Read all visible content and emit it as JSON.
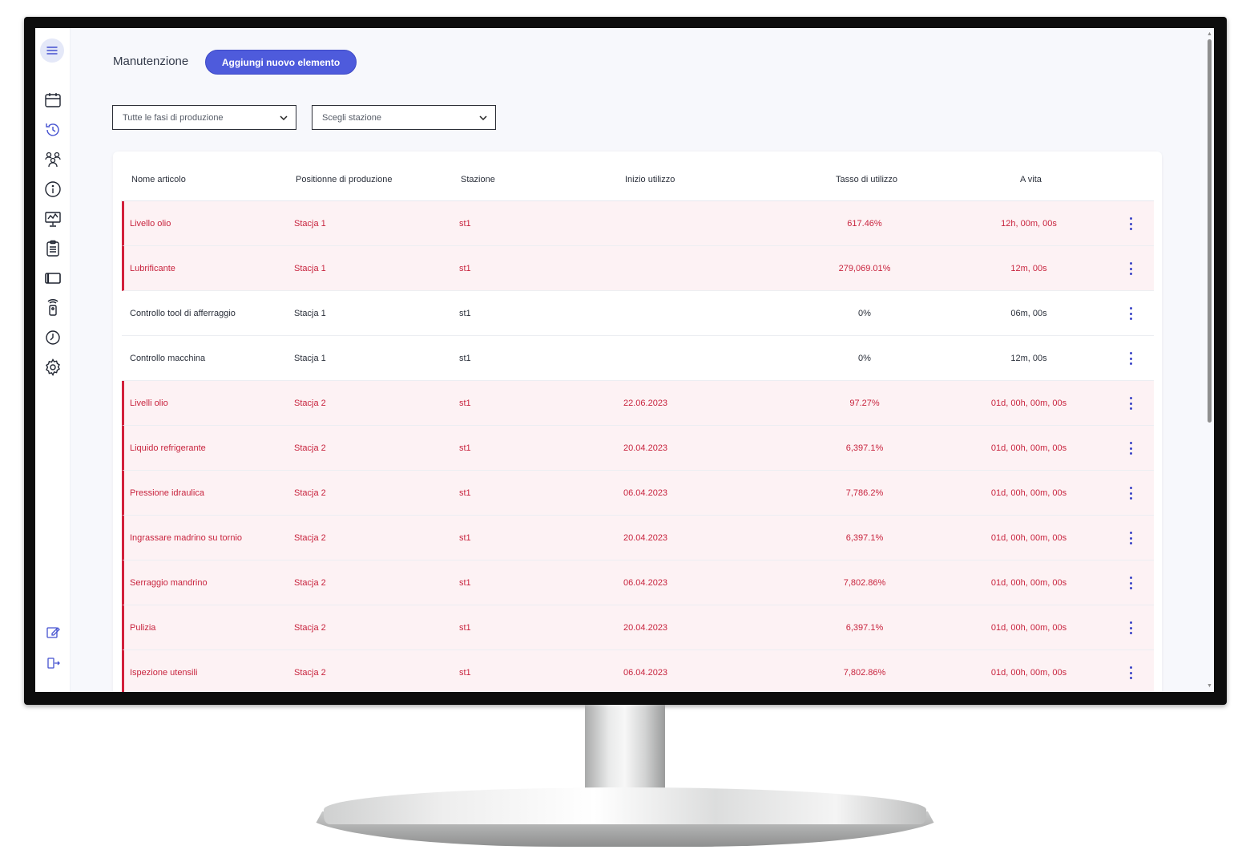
{
  "page": {
    "title": "Manutenzione",
    "add_button_label": "Aggiungi nuovo elemento"
  },
  "filters": {
    "phase": "Tutte le fasi di produzione",
    "station": "Scegli stazione"
  },
  "table": {
    "headers": {
      "name": "Nome articolo",
      "position": "Positionne di produzione",
      "station": "Stazione",
      "start": "Inizio utilizzo",
      "rate": "Tasso di utilizzo",
      "life": "A vita"
    },
    "rows": [
      {
        "name": "Livello olio",
        "position": "Stacja 1",
        "station": "st1",
        "start": "",
        "rate": "617.46%",
        "life": "12h, 00m, 00s",
        "alert": true
      },
      {
        "name": "Lubrificante",
        "position": "Stacja 1",
        "station": "st1",
        "start": "",
        "rate": "279,069.01%",
        "life": "12m, 00s",
        "alert": true
      },
      {
        "name": "Controllo tool di afferraggio",
        "position": "Stacja 1",
        "station": "st1",
        "start": "",
        "rate": "0%",
        "life": "06m, 00s",
        "alert": false
      },
      {
        "name": "Controllo macchina",
        "position": "Stacja 1",
        "station": "st1",
        "start": "",
        "rate": "0%",
        "life": "12m, 00s",
        "alert": false
      },
      {
        "name": "Livelli olio",
        "position": "Stacja 2",
        "station": "st1",
        "start": "22.06.2023",
        "rate": "97.27%",
        "life": "01d, 00h, 00m, 00s",
        "alert": true
      },
      {
        "name": "Liquido refrigerante",
        "position": "Stacja 2",
        "station": "st1",
        "start": "20.04.2023",
        "rate": "6,397.1%",
        "life": "01d, 00h, 00m, 00s",
        "alert": true
      },
      {
        "name": "Pressione idraulica",
        "position": "Stacja 2",
        "station": "st1",
        "start": "06.04.2023",
        "rate": "7,786.2%",
        "life": "01d, 00h, 00m, 00s",
        "alert": true
      },
      {
        "name": "Ingrassare madrino su tornio",
        "position": "Stacja 2",
        "station": "st1",
        "start": "20.04.2023",
        "rate": "6,397.1%",
        "life": "01d, 00h, 00m, 00s",
        "alert": true
      },
      {
        "name": "Serraggio mandrino",
        "position": "Stacja 2",
        "station": "st1",
        "start": "06.04.2023",
        "rate": "7,802.86%",
        "life": "01d, 00h, 00m, 00s",
        "alert": true
      },
      {
        "name": "Pulizia",
        "position": "Stacja 2",
        "station": "st1",
        "start": "20.04.2023",
        "rate": "6,397.1%",
        "life": "01d, 00h, 00m, 00s",
        "alert": true
      },
      {
        "name": "Ispezione utensili",
        "position": "Stacja 2",
        "station": "st1",
        "start": "06.04.2023",
        "rate": "7,802.86%",
        "life": "01d, 00h, 00m, 00s",
        "alert": true
      }
    ]
  },
  "sidebar": {
    "icons": [
      "menu-icon",
      "calendar-icon",
      "history-icon",
      "team-icon",
      "info-icon",
      "monitor-chart-icon",
      "clipboard-icon",
      "tablet-icon",
      "remote-icon",
      "clock-icon",
      "gear-icon",
      "edit-icon",
      "logout-icon"
    ],
    "active": "history-icon"
  },
  "colors": {
    "accent": "#4e5bdc",
    "alert_text": "#c8243e",
    "alert_bg": "#fdf2f4"
  }
}
